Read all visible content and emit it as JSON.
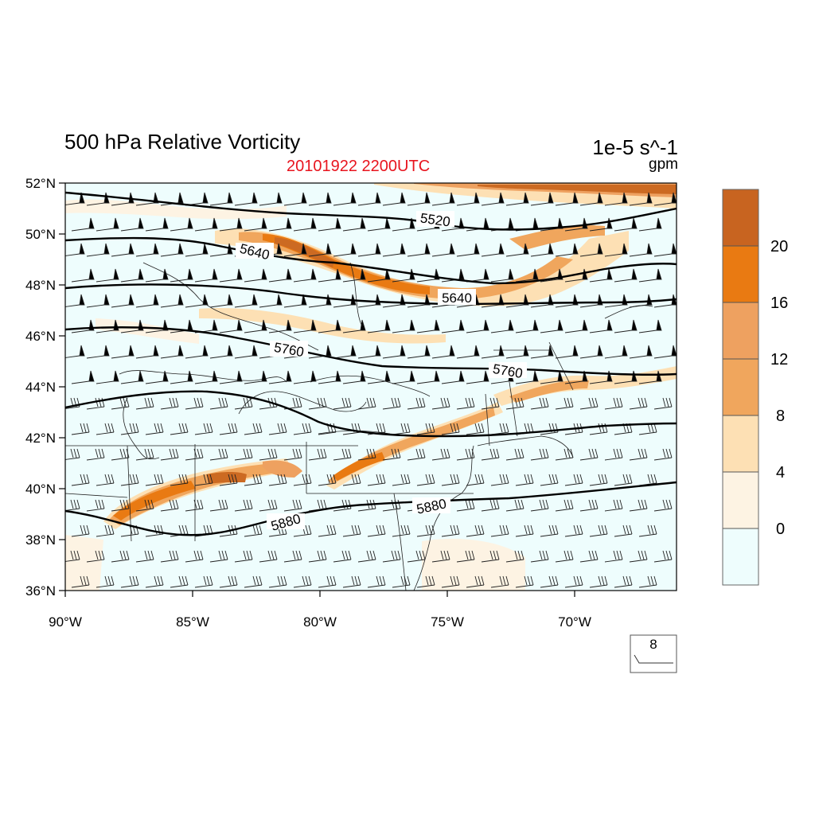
{
  "header": {
    "title": "500 hPa Relative Vorticity",
    "datetime": "20101922 2200UTC",
    "units": "1e-5 s^-1",
    "contour_units": "gpm"
  },
  "map": {
    "lat_labels": [
      "52°N",
      "50°N",
      "48°N",
      "46°N",
      "44°N",
      "42°N",
      "40°N",
      "38°N",
      "36°N"
    ],
    "lon_labels": [
      "90°W",
      "85°W",
      "80°W",
      "75°W",
      "70°W"
    ],
    "contour_labels": [
      "5520",
      "5640",
      "5640",
      "5760",
      "5760",
      "5880",
      "5880"
    ],
    "colors": {
      "ocean": "#eefdfd",
      "band_0": "#fdf3e3",
      "band_4": "#fde0b4",
      "band_8": "#f0a65d",
      "band_12": "#eb9a52",
      "band_16": "#e97a12",
      "band_20": "#cc6a22"
    }
  },
  "colorbar": {
    "labels": [
      "20",
      "16",
      "12",
      "8",
      "4",
      "0"
    ],
    "colors": [
      "#c86420",
      "#e97a12",
      "#eea160",
      "#f0a65d",
      "#fde0b4",
      "#fdf3e3",
      "#eefdfd"
    ]
  },
  "reference_vector": {
    "label": "8"
  }
}
